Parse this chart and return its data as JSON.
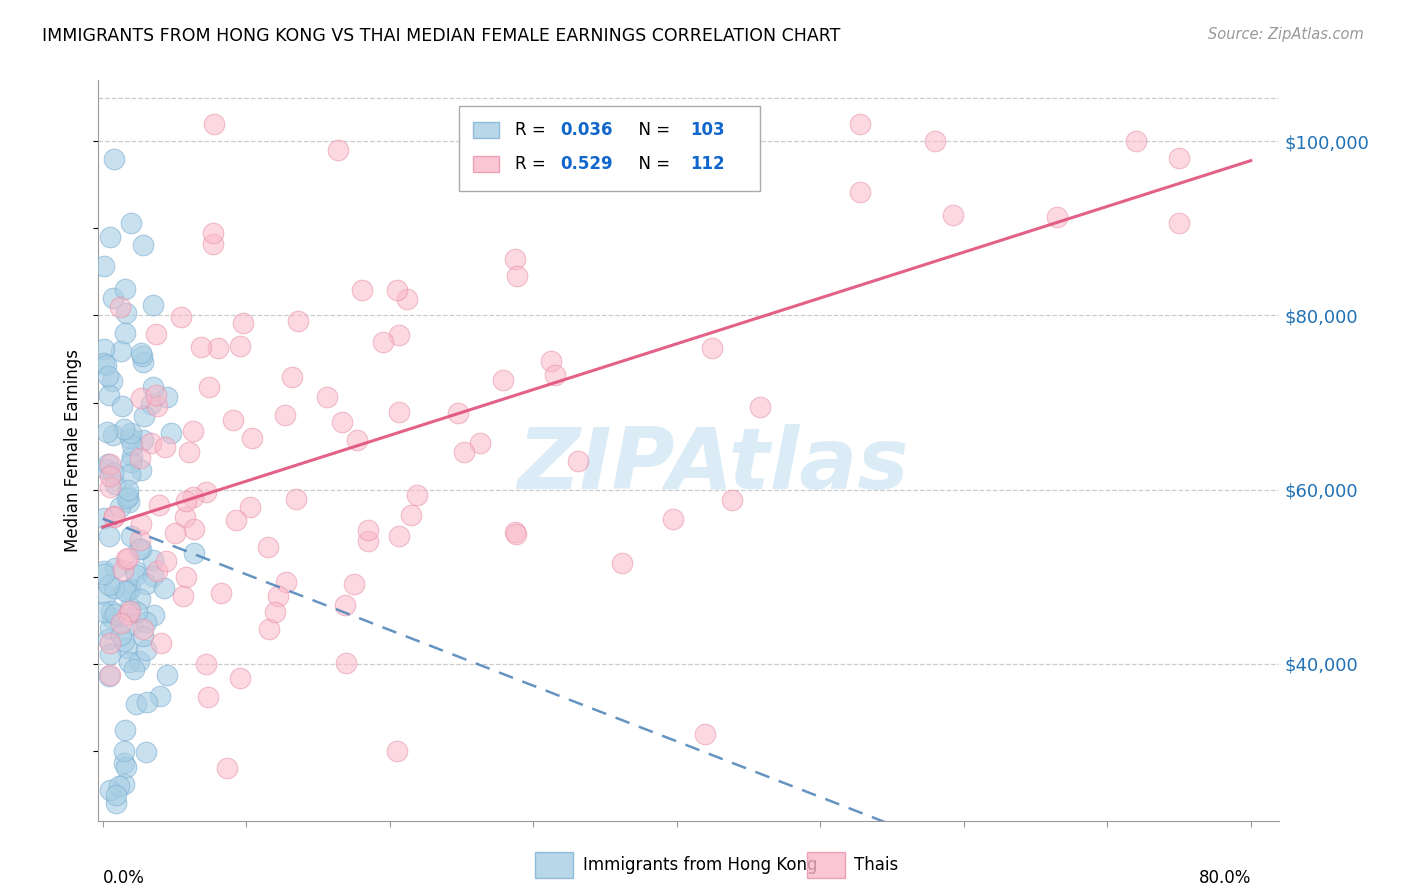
{
  "title": "IMMIGRANTS FROM HONG KONG VS THAI MEDIAN FEMALE EARNINGS CORRELATION CHART",
  "source": "Source: ZipAtlas.com",
  "ylabel": "Median Female Earnings",
  "y_tick_labels": [
    "$40,000",
    "$60,000",
    "$80,000",
    "$100,000"
  ],
  "y_tick_values": [
    40000,
    60000,
    80000,
    100000
  ],
  "y_min": 22000,
  "y_max": 107000,
  "x_min": -0.003,
  "x_max": 0.82,
  "legend_r1": "0.036",
  "legend_n1": "103",
  "legend_r2": "0.529",
  "legend_n2": "112",
  "color_blue": "#a6cee3",
  "color_blue_edge": "#7dafd4",
  "color_pink": "#fab8c8",
  "color_pink_edge": "#e890aa",
  "color_blue_line": "#5588bb",
  "color_pink_line": "#e0507a",
  "color_blue_text": "#2171b5",
  "color_rn_text": "#1166cc",
  "watermark_color": "#cce5f5",
  "watermark_text": "ZIPAtlas"
}
